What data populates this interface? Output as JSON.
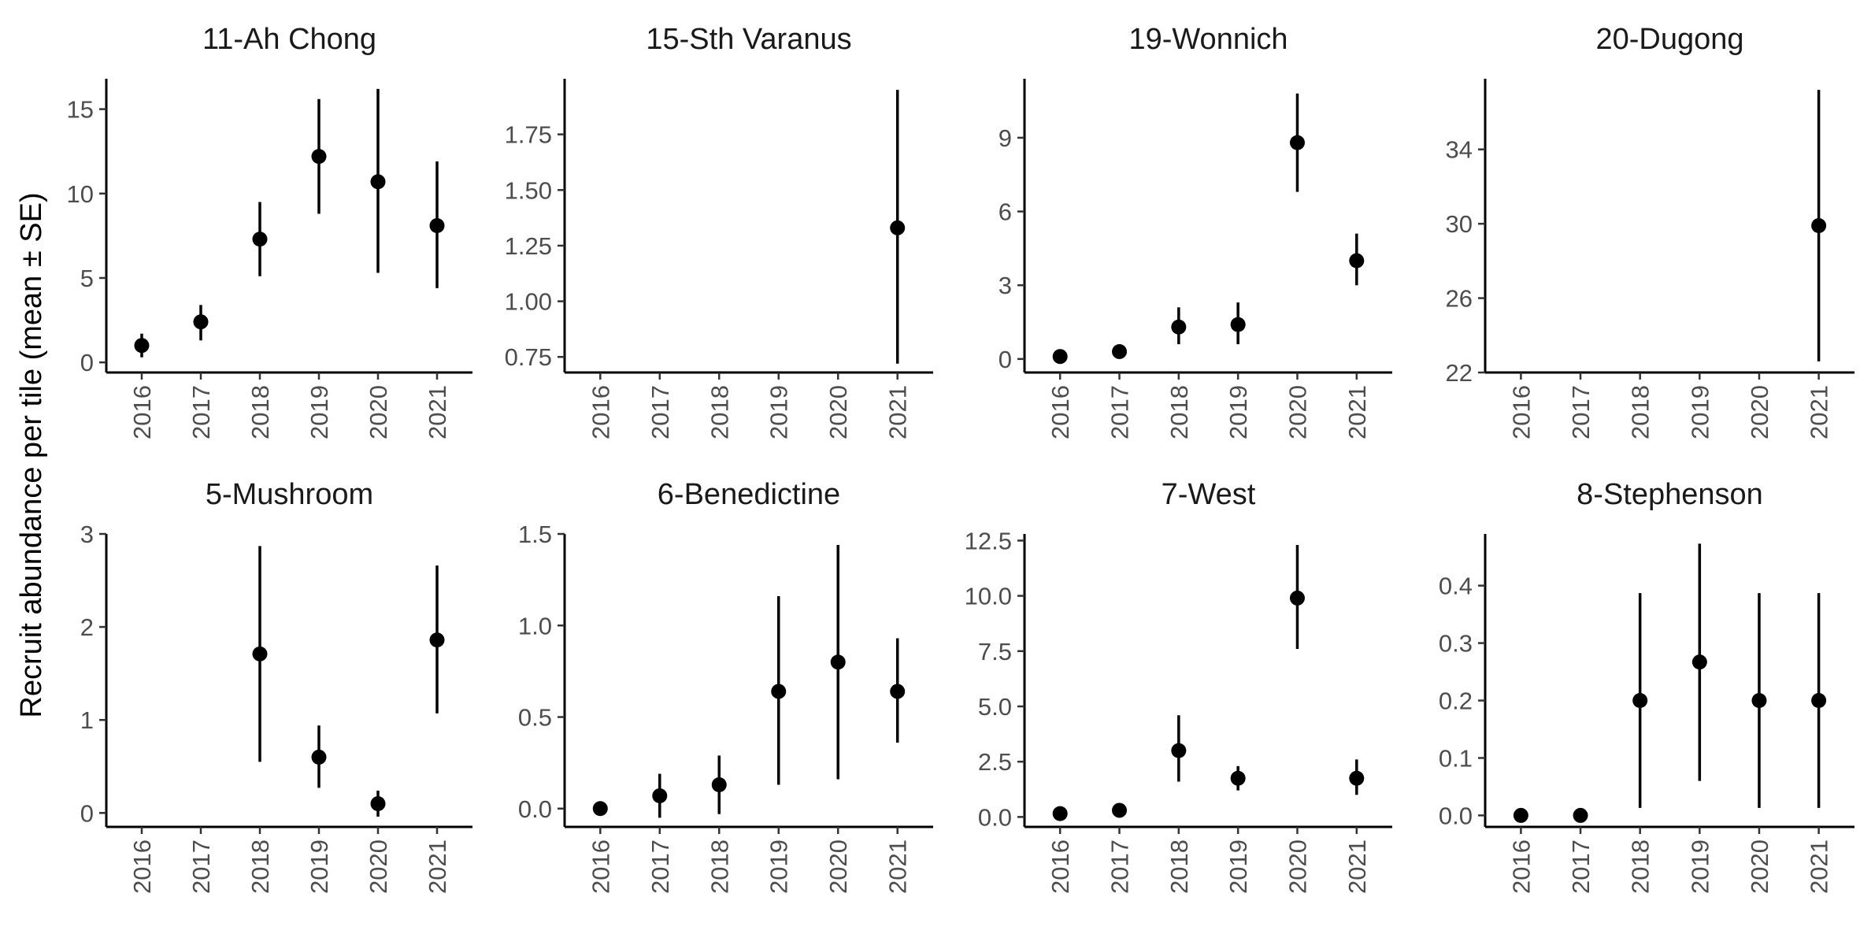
{
  "chart_data": {
    "type": "scatter",
    "facet": true,
    "ylabel": "Recruit abundance per tile (mean ± SE)",
    "xlabel": "",
    "x_categories": [
      "2016",
      "2017",
      "2018",
      "2019",
      "2020",
      "2021"
    ],
    "grid": false,
    "panels": [
      {
        "title": "11-Ah Chong",
        "ylim": [
          -0.6,
          16.8
        ],
        "yticks": [
          "0",
          "5",
          "10",
          "15"
        ],
        "ytick_values": [
          0,
          5,
          10,
          15
        ],
        "points": [
          {
            "x": "2016",
            "y": 1.0,
            "lo": 0.3,
            "hi": 1.7
          },
          {
            "x": "2017",
            "y": 2.4,
            "lo": 1.3,
            "hi": 3.4
          },
          {
            "x": "2018",
            "y": 7.3,
            "lo": 5.1,
            "hi": 9.5
          },
          {
            "x": "2019",
            "y": 12.2,
            "lo": 8.8,
            "hi": 15.6
          },
          {
            "x": "2020",
            "y": 10.7,
            "lo": 5.3,
            "hi": 16.2
          },
          {
            "x": "2021",
            "y": 8.1,
            "lo": 4.4,
            "hi": 11.9
          }
        ]
      },
      {
        "title": "15-Sth Varanus",
        "ylim": [
          0.68,
          2.0
        ],
        "yticks": [
          "0.75",
          "1.00",
          "1.25",
          "1.50",
          "1.75"
        ],
        "ytick_values": [
          0.75,
          1.0,
          1.25,
          1.5,
          1.75
        ],
        "points": [
          {
            "x": "2021",
            "y": 1.33,
            "lo": 0.72,
            "hi": 1.95
          }
        ]
      },
      {
        "title": "19-Wonnich",
        "ylim": [
          -0.55,
          11.4
        ],
        "yticks": [
          "0",
          "3",
          "6",
          "9"
        ],
        "ytick_values": [
          0,
          3,
          6,
          9
        ],
        "points": [
          {
            "x": "2016",
            "y": 0.1,
            "lo": 0.0,
            "hi": 0.2
          },
          {
            "x": "2017",
            "y": 0.3,
            "lo": 0.2,
            "hi": 0.4
          },
          {
            "x": "2018",
            "y": 1.3,
            "lo": 0.6,
            "hi": 2.1
          },
          {
            "x": "2019",
            "y": 1.4,
            "lo": 0.6,
            "hi": 2.3
          },
          {
            "x": "2020",
            "y": 8.8,
            "lo": 6.8,
            "hi": 10.8
          },
          {
            "x": "2021",
            "y": 4.0,
            "lo": 3.0,
            "hi": 5.1
          }
        ]
      },
      {
        "title": "20-Dugong",
        "ylim": [
          22.0,
          37.8
        ],
        "yticks": [
          "22",
          "26",
          "30",
          "34"
        ],
        "ytick_values": [
          22,
          26,
          30,
          34
        ],
        "points": [
          {
            "x": "2021",
            "y": 29.9,
            "lo": 22.6,
            "hi": 37.2
          }
        ]
      },
      {
        "title": "5-Mushroom",
        "ylim": [
          -0.15,
          3.0
        ],
        "yticks": [
          "0",
          "1",
          "2",
          "3"
        ],
        "ytick_values": [
          0,
          1,
          2,
          3
        ],
        "points": [
          {
            "x": "2018",
            "y": 1.71,
            "lo": 0.55,
            "hi": 2.87
          },
          {
            "x": "2019",
            "y": 0.6,
            "lo": 0.27,
            "hi": 0.94
          },
          {
            "x": "2020",
            "y": 0.1,
            "lo": -0.04,
            "hi": 0.24
          },
          {
            "x": "2021",
            "y": 1.86,
            "lo": 1.07,
            "hi": 2.66
          }
        ]
      },
      {
        "title": "6-Benedictine",
        "ylim": [
          -0.1,
          1.5
        ],
        "yticks": [
          "0.0",
          "0.5",
          "1.0",
          "1.5"
        ],
        "ytick_values": [
          0,
          0.5,
          1.0,
          1.5
        ],
        "points": [
          {
            "x": "2016",
            "y": 0.0,
            "lo": 0.0,
            "hi": 0.0
          },
          {
            "x": "2017",
            "y": 0.07,
            "lo": -0.05,
            "hi": 0.19
          },
          {
            "x": "2018",
            "y": 0.13,
            "lo": -0.03,
            "hi": 0.29
          },
          {
            "x": "2019",
            "y": 0.64,
            "lo": 0.13,
            "hi": 1.16
          },
          {
            "x": "2020",
            "y": 0.8,
            "lo": 0.16,
            "hi": 1.44
          },
          {
            "x": "2021",
            "y": 0.64,
            "lo": 0.36,
            "hi": 0.93
          }
        ]
      },
      {
        "title": "7-West",
        "ylim": [
          -0.45,
          12.8
        ],
        "yticks": [
          "0.0",
          "2.5",
          "5.0",
          "7.5",
          "10.0",
          "12.5"
        ],
        "ytick_values": [
          0,
          2.5,
          5.0,
          7.5,
          10.0,
          12.5
        ],
        "points": [
          {
            "x": "2016",
            "y": 0.15,
            "lo": 0.05,
            "hi": 0.25
          },
          {
            "x": "2017",
            "y": 0.3,
            "lo": 0.2,
            "hi": 0.4
          },
          {
            "x": "2018",
            "y": 3.0,
            "lo": 1.6,
            "hi": 4.6
          },
          {
            "x": "2019",
            "y": 1.75,
            "lo": 1.2,
            "hi": 2.3
          },
          {
            "x": "2020",
            "y": 9.9,
            "lo": 7.6,
            "hi": 12.3
          },
          {
            "x": "2021",
            "y": 1.75,
            "lo": 1.0,
            "hi": 2.6
          }
        ]
      },
      {
        "title": "8-Stephenson",
        "ylim": [
          -0.02,
          0.49
        ],
        "yticks": [
          "0.0",
          "0.1",
          "0.2",
          "0.3",
          "0.4"
        ],
        "ytick_values": [
          0,
          0.1,
          0.2,
          0.3,
          0.4
        ],
        "points": [
          {
            "x": "2016",
            "y": 0.0,
            "lo": 0.0,
            "hi": 0.0
          },
          {
            "x": "2017",
            "y": 0.0,
            "lo": 0.0,
            "hi": 0.0
          },
          {
            "x": "2018",
            "y": 0.2,
            "lo": 0.013,
            "hi": 0.387
          },
          {
            "x": "2019",
            "y": 0.267,
            "lo": 0.06,
            "hi": 0.473
          },
          {
            "x": "2020",
            "y": 0.2,
            "lo": 0.013,
            "hi": 0.387
          },
          {
            "x": "2021",
            "y": 0.2,
            "lo": 0.013,
            "hi": 0.387
          }
        ]
      }
    ],
    "colors": {
      "point": "#000000",
      "axis": "#000000",
      "tick_label": "#4d4d4d",
      "title": "#1a1a1a"
    }
  }
}
